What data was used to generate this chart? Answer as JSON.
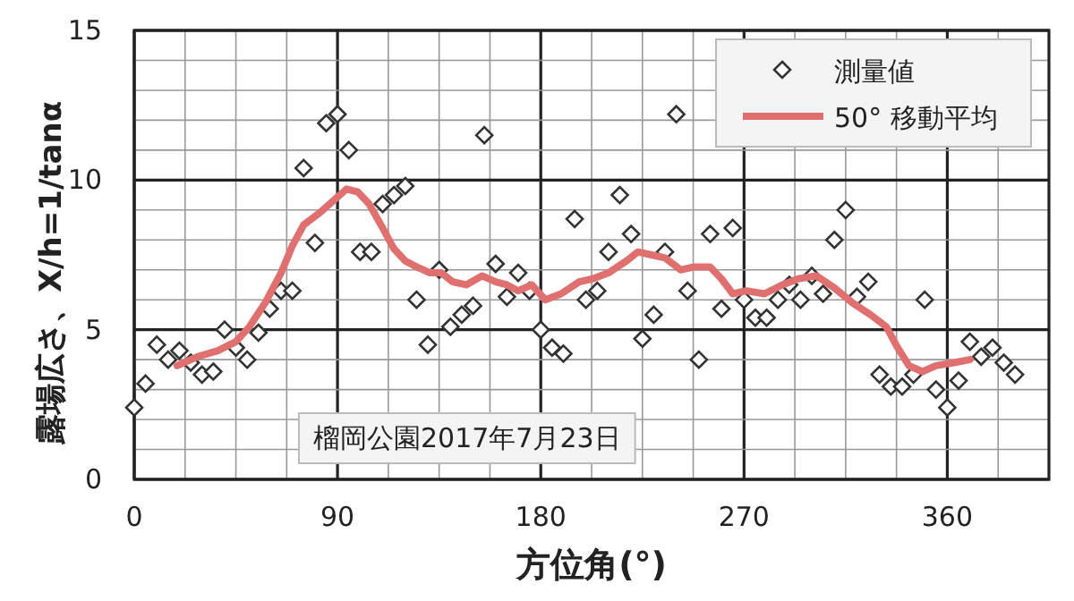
{
  "chart_data": {
    "type": "scatter",
    "xlabel": "方位角(°)",
    "ylabel": "露場広さ、X/h=1/tanα",
    "annotations": [
      "榴岡公園2017年7月23日"
    ],
    "xlim": [
      0,
      405
    ],
    "ylim": [
      0,
      15
    ],
    "xticks": [
      0,
      {
        "value": 22.5,
        "label": null
      },
      {
        "value": 45,
        "label": null
      },
      {
        "value": 67.5,
        "label": null
      },
      90,
      {
        "value": 112.5,
        "label": null
      },
      {
        "value": 135,
        "label": null
      },
      {
        "value": 157.5,
        "label": null
      },
      180,
      {
        "value": 202.5,
        "label": null
      },
      {
        "value": 225,
        "label": null
      },
      {
        "value": 247.5,
        "label": null
      },
      270,
      {
        "value": 292.5,
        "label": null
      },
      {
        "value": 315,
        "label": null
      },
      {
        "value": 337.5,
        "label": null
      },
      360,
      {
        "value": 382.5,
        "label": null
      },
      {
        "value": 405,
        "label": null
      }
    ],
    "yticks": [
      0,
      {
        "value": 1,
        "label": null
      },
      {
        "value": 2,
        "label": null
      },
      {
        "value": 3,
        "label": null
      },
      {
        "value": 4,
        "label": null
      },
      5,
      {
        "value": 6,
        "label": null
      },
      {
        "value": 7,
        "label": null
      },
      {
        "value": 8,
        "label": null
      },
      {
        "value": 9,
        "label": null
      },
      10,
      {
        "value": 11,
        "label": null
      },
      {
        "value": 12,
        "label": null
      },
      {
        "value": 13,
        "label": null
      },
      {
        "value": 14,
        "label": null
      },
      15
    ],
    "grid": true,
    "legend": "top right",
    "series": [
      {
        "name": "測量値",
        "marker": "diamond",
        "color": "#333333",
        "x": [
          0,
          5,
          10,
          15,
          20,
          25,
          30,
          35,
          40,
          45,
          50,
          55,
          60,
          65,
          70,
          75,
          80,
          85,
          90,
          95,
          100,
          105,
          110,
          115,
          120,
          125,
          130,
          135,
          140,
          145,
          150,
          155,
          160,
          165,
          170,
          175,
          180,
          185,
          190,
          195,
          200,
          205,
          210,
          215,
          220,
          225,
          230,
          235,
          240,
          245,
          250,
          255,
          260,
          265,
          270,
          275,
          280,
          285,
          290,
          295,
          300,
          305,
          310,
          315,
          320,
          325,
          330,
          335,
          340,
          345,
          350,
          355,
          360,
          365,
          370,
          375,
          380,
          385,
          390
        ],
        "values": [
          2.4,
          3.2,
          4.5,
          4.0,
          4.3,
          3.9,
          3.5,
          3.6,
          5.0,
          4.4,
          4.0,
          4.9,
          5.7,
          6.3,
          6.3,
          10.4,
          7.9,
          11.9,
          12.2,
          11.0,
          7.6,
          7.6,
          9.2,
          9.5,
          9.8,
          6.0,
          4.5,
          7.0,
          5.1,
          5.5,
          5.8,
          11.5,
          7.2,
          6.1,
          6.9,
          6.3,
          5.0,
          4.4,
          4.2,
          8.7,
          6.0,
          6.3,
          7.6,
          9.5,
          8.2,
          4.7,
          5.5,
          7.6,
          12.2,
          6.3,
          4.0,
          8.2,
          5.7,
          8.4,
          6.0,
          5.4,
          5.4,
          6.0,
          6.5,
          6.0,
          6.8,
          6.2,
          8.0,
          9.0,
          6.1,
          6.6,
          3.5,
          3.1,
          3.1,
          3.5,
          6.0,
          3.0,
          2.4,
          3.3,
          4.6,
          4.1,
          4.4,
          3.9,
          3.5
        ]
      },
      {
        "name": "50° 移動平均",
        "type": "line",
        "marker": "none",
        "line_style": "solid",
        "color": "#e07070",
        "x": [
          19,
          28,
          37,
          45,
          51,
          58,
          65,
          70,
          75,
          82,
          88,
          94,
          99,
          104,
          110,
          115,
          120,
          125,
          131,
          136,
          141,
          147,
          154,
          160,
          165,
          170,
          176,
          182,
          189,
          197,
          203,
          210,
          218,
          223,
          229,
          235,
          242,
          248,
          255,
          260,
          265,
          271,
          279,
          287,
          294,
          302,
          310,
          318,
          326,
          333,
          338,
          343,
          349,
          355,
          363,
          370
        ],
        "values": [
          3.8,
          4.1,
          4.3,
          4.6,
          5.1,
          5.9,
          6.9,
          7.8,
          8.5,
          8.9,
          9.3,
          9.7,
          9.6,
          9.2,
          8.4,
          7.7,
          7.3,
          7.1,
          6.9,
          6.9,
          6.6,
          6.5,
          6.8,
          6.6,
          6.5,
          6.3,
          6.5,
          6.0,
          6.2,
          6.6,
          6.7,
          6.9,
          7.3,
          7.6,
          7.5,
          7.4,
          7.0,
          7.1,
          7.1,
          6.7,
          6.2,
          6.3,
          6.2,
          6.5,
          6.7,
          6.8,
          6.4,
          5.9,
          5.5,
          5.1,
          4.4,
          3.8,
          3.6,
          3.8,
          3.9,
          4.0
        ]
      }
    ]
  }
}
